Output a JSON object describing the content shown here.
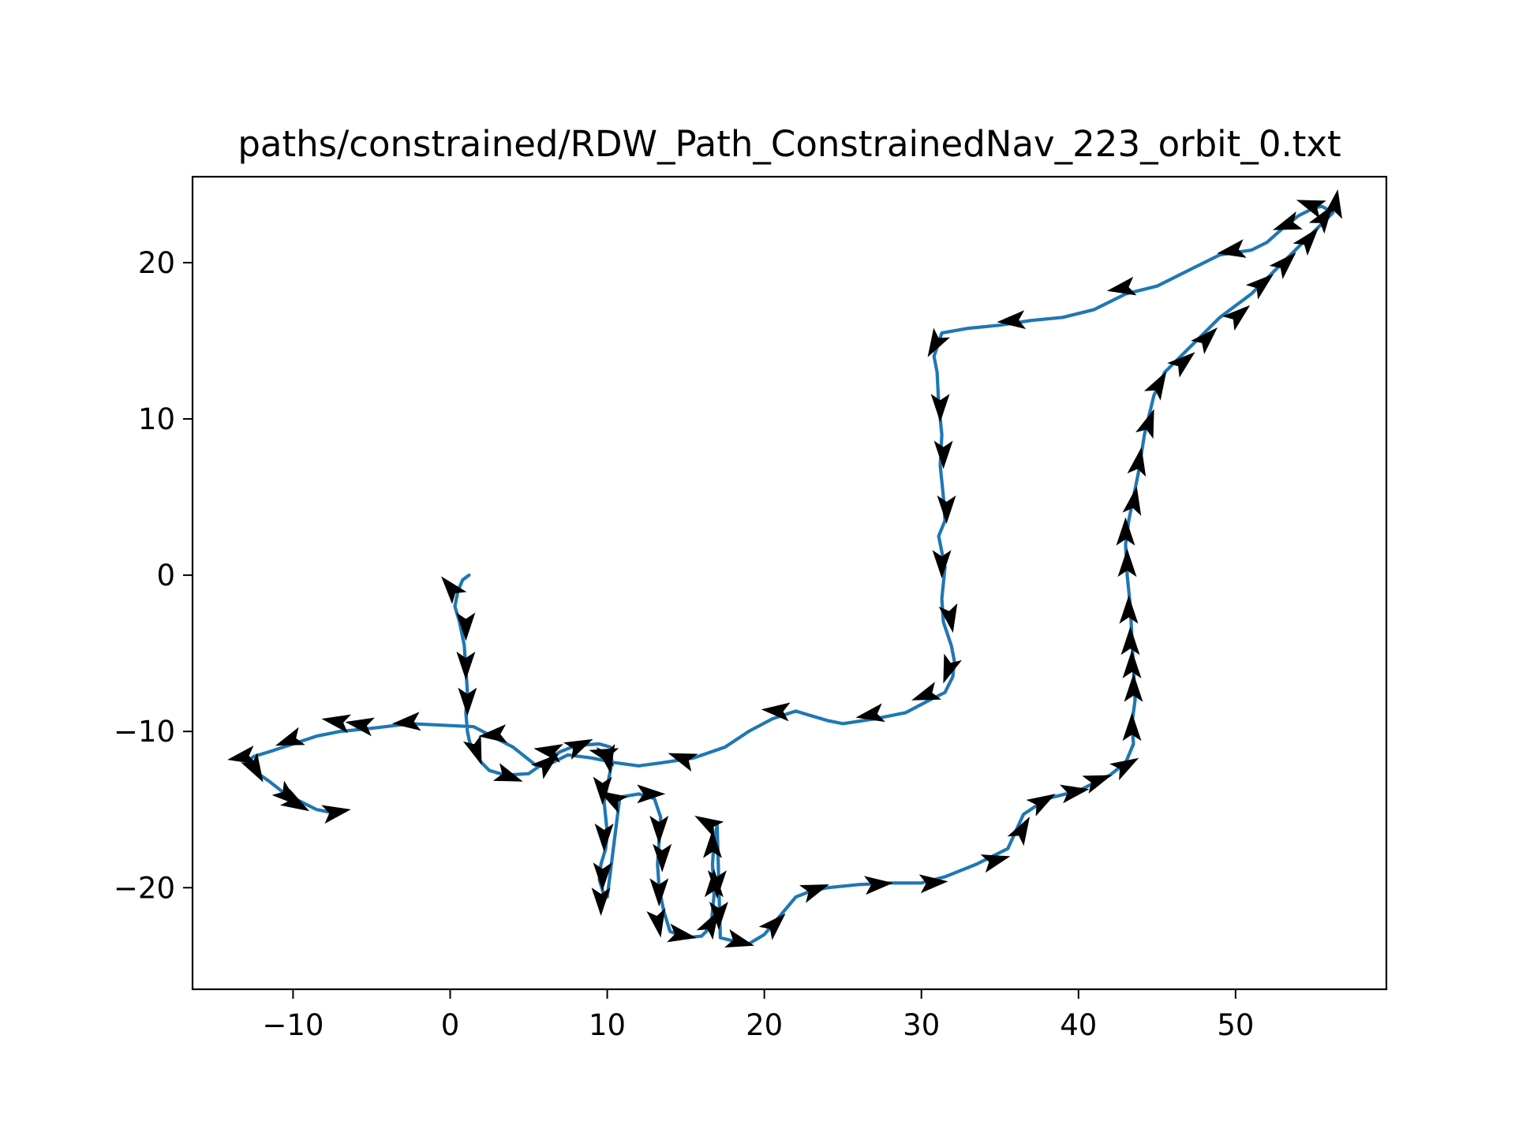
{
  "chart_data": {
    "type": "line",
    "title": "paths/constrained/RDW_Path_ConstrainedNav_223_orbit_0.txt",
    "xlabel": "",
    "ylabel": "",
    "xlim": [
      -16.4,
      59.6
    ],
    "ylim": [
      -26.5,
      25.5
    ],
    "x_ticks": [
      -10,
      0,
      10,
      20,
      30,
      40,
      50
    ],
    "x_tick_labels": [
      "−10",
      "0",
      "10",
      "20",
      "30",
      "40",
      "50"
    ],
    "y_ticks": [
      -20,
      -10,
      0,
      10,
      20
    ],
    "y_tick_labels": [
      "−20",
      "−10",
      "0",
      "10",
      "20"
    ],
    "grid": false,
    "legend": "none",
    "colors": {
      "path": "#1f77b4",
      "arrows": "#000000"
    },
    "series": [
      {
        "x": [
          1.2,
          0.8,
          0.5,
          0.3,
          0.6,
          0.9,
          1.0,
          1.1,
          1.0,
          1.1,
          1.2,
          1.4,
          2.0,
          2.5,
          3.5,
          5.0,
          6.0,
          7.0,
          8.0,
          9.5,
          10.2,
          10.3,
          10.0,
          9.8,
          9.9,
          10.0,
          9.9,
          9.6,
          9.5,
          9.8,
          10.0,
          10.8,
          12.0,
          13.0,
          13.4,
          13.3,
          13.2,
          13.3,
          13.6,
          14.0,
          15.0,
          16.0,
          16.6,
          16.8,
          16.7,
          16.8,
          17.0,
          17.2,
          18.0,
          19.0,
          20.0,
          21.0,
          22.0,
          23.0,
          24.0,
          26.0,
          28.0,
          30.0,
          31.5,
          33.5,
          35.5,
          36.5,
          38.0,
          40.0,
          42.0,
          43.0,
          43.5,
          43.4,
          43.6,
          43.5,
          43.4,
          43.3,
          43.1,
          43.0,
          43.2,
          43.5,
          43.8,
          44.2,
          44.8,
          45.5,
          47.0,
          49.0,
          51.0,
          53.0,
          54.5,
          55.5,
          56.2,
          55.5,
          55.0,
          54.0,
          53.0,
          52.0,
          51.0,
          49.0,
          47.0,
          45.0,
          43.0,
          41.0,
          39.0,
          37.0,
          35.0,
          33.0,
          31.3,
          30.8,
          31.0,
          31.1,
          31.3,
          31.2,
          31.4,
          31.5,
          31.1,
          31.5,
          31.3,
          31.4,
          31.9,
          32.1,
          32.0,
          31.5,
          30.5,
          29.0,
          27.0,
          25.0,
          24.0,
          22.0,
          20.5,
          19.0,
          17.5,
          15.5,
          13.5,
          12.0,
          10.5,
          9.0,
          7.5,
          6.5,
          5.5,
          4.0,
          1.5,
          -2.5,
          -5.0,
          -7.0,
          -8.5,
          -10.0,
          -11.5,
          -12.5,
          -13.0,
          -12.5,
          -11.5,
          -10.5,
          -9.5,
          -8.5,
          -7.5
        ],
        "y": [
          0.0,
          -0.3,
          -1.0,
          -2.0,
          -3.0,
          -4.5,
          -6.0,
          -7.5,
          -8.8,
          -10.0,
          -10.5,
          -11.2,
          -12.0,
          -12.5,
          -12.8,
          -12.7,
          -12.0,
          -11.3,
          -10.9,
          -10.8,
          -11.0,
          -12.0,
          -13.5,
          -14.5,
          -15.5,
          -16.5,
          -17.5,
          -18.5,
          -19.5,
          -20.5,
          -20.6,
          -14.2,
          -14.0,
          -14.3,
          -15.5,
          -17.0,
          -18.5,
          -20.0,
          -21.5,
          -22.8,
          -23.2,
          -23.1,
          -22.5,
          -20.5,
          -18.5,
          -17.0,
          -16.0,
          -23.2,
          -23.4,
          -23.6,
          -23.0,
          -21.8,
          -20.6,
          -20.2,
          -20.0,
          -19.8,
          -19.7,
          -19.7,
          -19.3,
          -18.5,
          -17.5,
          -15.3,
          -14.3,
          -13.8,
          -12.8,
          -12.0,
          -10.8,
          -9.5,
          -8.0,
          -6.0,
          -4.0,
          -2.0,
          0.0,
          2.0,
          3.5,
          5.0,
          6.5,
          9.0,
          11.5,
          13.0,
          14.5,
          16.5,
          18.0,
          20.0,
          21.5,
          22.5,
          23.2,
          23.6,
          23.5,
          23.0,
          22.2,
          21.3,
          20.8,
          20.5,
          19.5,
          18.5,
          18.0,
          17.0,
          16.5,
          16.3,
          16.0,
          15.8,
          15.5,
          14.0,
          13.0,
          11.0,
          9.0,
          7.0,
          5.0,
          3.5,
          2.5,
          0.5,
          -1.5,
          -3.0,
          -4.5,
          -5.5,
          -6.5,
          -7.5,
          -8.0,
          -8.8,
          -9.2,
          -9.5,
          -9.3,
          -8.7,
          -9.2,
          -10.0,
          -11.0,
          -11.7,
          -12.0,
          -12.2,
          -12.0,
          -11.7,
          -11.5,
          -12.0,
          -12.2,
          -11.0,
          -9.7,
          -9.5,
          -9.8,
          -10.0,
          -10.3,
          -10.8,
          -11.3,
          -11.6,
          -12.0,
          -12.5,
          -13.2,
          -14.0,
          -14.5,
          -15.0,
          -15.2
        ]
      }
    ],
    "arrows": [
      {
        "x": 0.2,
        "y": -1.0,
        "angle": 130
      },
      {
        "x": 1.0,
        "y": -3.0,
        "angle": -90
      },
      {
        "x": 1.0,
        "y": -5.5,
        "angle": -90
      },
      {
        "x": 1.1,
        "y": -7.8,
        "angle": -90
      },
      {
        "x": 1.6,
        "y": -11.0,
        "angle": -70
      },
      {
        "x": 3.5,
        "y": -12.8,
        "angle": -20
      },
      {
        "x": 6.0,
        "y": -12.2,
        "angle": 40
      },
      {
        "x": 8.0,
        "y": -11.0,
        "angle": 25
      },
      {
        "x": 10.0,
        "y": -11.5,
        "angle": -80
      },
      {
        "x": 9.7,
        "y": -13.5,
        "angle": -90
      },
      {
        "x": 9.8,
        "y": -16.5,
        "angle": -90
      },
      {
        "x": 9.7,
        "y": -19.0,
        "angle": -90
      },
      {
        "x": 9.6,
        "y": -20.6,
        "angle": -90
      },
      {
        "x": 10.5,
        "y": -14.4,
        "angle": 150
      },
      {
        "x": 12.5,
        "y": -14.0,
        "angle": 0
      },
      {
        "x": 13.3,
        "y": -16.0,
        "angle": -90
      },
      {
        "x": 13.5,
        "y": -17.8,
        "angle": -90
      },
      {
        "x": 13.3,
        "y": -20.0,
        "angle": -90
      },
      {
        "x": 13.2,
        "y": -22.0,
        "angle": -80
      },
      {
        "x": 14.5,
        "y": -23.0,
        "angle": -10
      },
      {
        "x": 16.5,
        "y": -22.5,
        "angle": 60
      },
      {
        "x": 16.8,
        "y": -20.0,
        "angle": 90
      },
      {
        "x": 16.7,
        "y": -17.5,
        "angle": 90
      },
      {
        "x": 16.6,
        "y": -16.0,
        "angle": 150
      },
      {
        "x": 17.0,
        "y": -19.5,
        "angle": -90
      },
      {
        "x": 17.1,
        "y": -21.5,
        "angle": -90
      },
      {
        "x": 18.2,
        "y": -23.4,
        "angle": -15
      },
      {
        "x": 20.5,
        "y": -22.5,
        "angle": 45
      },
      {
        "x": 23.0,
        "y": -20.2,
        "angle": 20
      },
      {
        "x": 27.0,
        "y": -19.8,
        "angle": 5
      },
      {
        "x": 30.5,
        "y": -19.7,
        "angle": 5
      },
      {
        "x": 34.5,
        "y": -18.3,
        "angle": 15
      },
      {
        "x": 36.3,
        "y": -16.5,
        "angle": 60
      },
      {
        "x": 37.5,
        "y": -14.6,
        "angle": 30
      },
      {
        "x": 39.5,
        "y": -13.9,
        "angle": 10
      },
      {
        "x": 41.0,
        "y": -13.2,
        "angle": 20
      },
      {
        "x": 42.8,
        "y": -12.3,
        "angle": 30
      },
      {
        "x": 43.4,
        "y": -10.0,
        "angle": 90
      },
      {
        "x": 43.5,
        "y": -7.5,
        "angle": 90
      },
      {
        "x": 43.4,
        "y": -6.0,
        "angle": 90
      },
      {
        "x": 43.3,
        "y": -4.5,
        "angle": 90
      },
      {
        "x": 43.2,
        "y": -2.5,
        "angle": 90
      },
      {
        "x": 43.1,
        "y": 0.5,
        "angle": 90
      },
      {
        "x": 43.0,
        "y": 2.5,
        "angle": 90
      },
      {
        "x": 43.5,
        "y": 4.5,
        "angle": 80
      },
      {
        "x": 43.8,
        "y": 7.0,
        "angle": 80
      },
      {
        "x": 44.4,
        "y": 9.5,
        "angle": 70
      },
      {
        "x": 45.0,
        "y": 12.0,
        "angle": 60
      },
      {
        "x": 46.5,
        "y": 13.5,
        "angle": 40
      },
      {
        "x": 48.0,
        "y": 15.0,
        "angle": 45
      },
      {
        "x": 50.0,
        "y": 16.5,
        "angle": 40
      },
      {
        "x": 51.5,
        "y": 18.5,
        "angle": 40
      },
      {
        "x": 53.0,
        "y": 19.8,
        "angle": 45
      },
      {
        "x": 54.5,
        "y": 21.3,
        "angle": 50
      },
      {
        "x": 55.5,
        "y": 22.7,
        "angle": 55
      },
      {
        "x": 56.3,
        "y": 23.5,
        "angle": 80
      },
      {
        "x": 55.0,
        "y": 23.6,
        "angle": 160
      },
      {
        "x": 53.5,
        "y": 22.5,
        "angle": 200
      },
      {
        "x": 50.0,
        "y": 20.8,
        "angle": 190
      },
      {
        "x": 43.0,
        "y": 18.4,
        "angle": 190
      },
      {
        "x": 36.0,
        "y": 16.3,
        "angle": 185
      },
      {
        "x": 31.0,
        "y": 15.0,
        "angle": 240
      },
      {
        "x": 31.2,
        "y": 11.0,
        "angle": -90
      },
      {
        "x": 31.4,
        "y": 8.0,
        "angle": -90
      },
      {
        "x": 31.6,
        "y": 4.5,
        "angle": -90
      },
      {
        "x": 31.3,
        "y": 1.0,
        "angle": -90
      },
      {
        "x": 31.8,
        "y": -2.5,
        "angle": -80
      },
      {
        "x": 31.8,
        "y": -5.8,
        "angle": -110
      },
      {
        "x": 30.5,
        "y": -7.6,
        "angle": 200
      },
      {
        "x": 27.0,
        "y": -8.9,
        "angle": 190
      },
      {
        "x": 21.0,
        "y": -8.7,
        "angle": 175
      },
      {
        "x": 15.0,
        "y": -11.8,
        "angle": 160
      },
      {
        "x": 10.0,
        "y": -11.5,
        "angle": 165
      },
      {
        "x": 6.5,
        "y": -11.3,
        "angle": 170
      },
      {
        "x": 3.0,
        "y": -10.2,
        "angle": 185
      },
      {
        "x": -2.5,
        "y": -9.4,
        "angle": 185
      },
      {
        "x": -5.5,
        "y": -9.6,
        "angle": 170
      },
      {
        "x": -7.0,
        "y": -9.4,
        "angle": 170
      },
      {
        "x": -10.0,
        "y": -10.5,
        "angle": 200
      },
      {
        "x": -13.0,
        "y": -11.6,
        "angle": 190
      },
      {
        "x": -12.5,
        "y": -12.2,
        "angle": -60
      },
      {
        "x": -10.5,
        "y": -14.0,
        "angle": -40
      },
      {
        "x": -10.0,
        "y": -14.5,
        "angle": -30
      },
      {
        "x": -7.5,
        "y": -15.2,
        "angle": 10
      }
    ]
  }
}
